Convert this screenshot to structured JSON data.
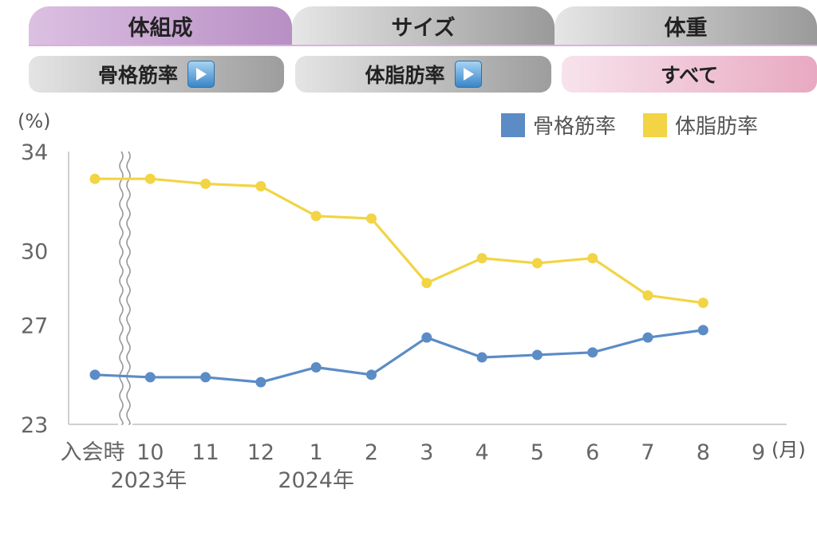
{
  "tabs": [
    {
      "label": "体組成",
      "active": true
    },
    {
      "label": "サイズ",
      "active": false
    },
    {
      "label": "体重",
      "active": false
    }
  ],
  "subtabs": [
    {
      "label": "骨格筋率",
      "icon": "play-icon",
      "active": false
    },
    {
      "label": "体脂肪率",
      "icon": "play-icon",
      "active": false
    },
    {
      "label": "すべて",
      "active": true
    }
  ],
  "colors": {
    "skeletal": "#5b8cc6",
    "fat": "#f2d444",
    "axis": "#cfcfcf"
  },
  "chart_data": {
    "type": "line",
    "y_unit": "(%)",
    "x_unit": "(月)",
    "y_ticks": [
      34,
      30,
      27,
      23
    ],
    "ylim": [
      23,
      34
    ],
    "categories": [
      "入会時",
      "10",
      "11",
      "12",
      "1",
      "2",
      "3",
      "4",
      "5",
      "6",
      "7",
      "8",
      "9"
    ],
    "year_labels": [
      {
        "label": "2023年",
        "at": "10"
      },
      {
        "label": "2024年",
        "at": "1"
      }
    ],
    "axis_break_after": "入会時",
    "series": [
      {
        "name": "骨格筋率",
        "color": "#5b8cc6",
        "values": [
          25.0,
          24.9,
          24.9,
          24.7,
          25.3,
          25.0,
          26.5,
          25.7,
          25.8,
          25.9,
          26.5,
          26.8,
          null
        ]
      },
      {
        "name": "体脂肪率",
        "color": "#f2d444",
        "values": [
          32.9,
          32.9,
          32.7,
          32.6,
          31.4,
          31.3,
          28.7,
          29.7,
          29.5,
          29.7,
          28.2,
          27.9,
          null
        ]
      }
    ]
  }
}
